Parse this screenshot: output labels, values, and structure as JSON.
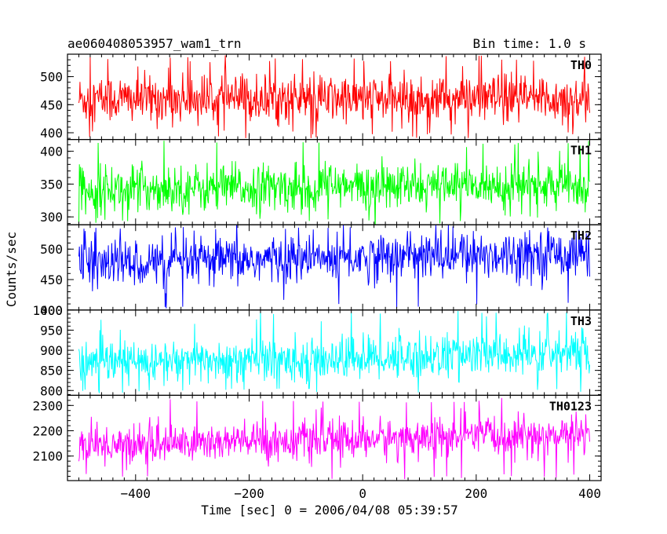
{
  "chart_data": {
    "type": "line",
    "title_left": "ae060408053957_wam1_trn",
    "title_right": "Bin time: 1.0 s",
    "xlabel": "Time [sec] 0 = 2006/04/08 05:39:57",
    "ylabel": "Counts/sec",
    "xlim": [
      -520,
      420
    ],
    "xticks": [
      -400,
      -200,
      0,
      200,
      400
    ],
    "xtick_labels": [
      "−400",
      "−200",
      "0",
      "200",
      "400"
    ],
    "bin_time_s": 1.0,
    "data_x_range": [
      -500,
      400
    ],
    "panels": [
      {
        "name": "TH0",
        "color": "#ff0000",
        "ylim": [
          388,
          540
        ],
        "yticks": [
          400,
          450,
          500
        ],
        "mean": 460,
        "noise_sd": 22,
        "trend": 0,
        "spike_max": 538,
        "spike_min": 390
      },
      {
        "name": "TH1",
        "color": "#00ff00",
        "ylim": [
          288,
          418
        ],
        "yticks": [
          300,
          350,
          400
        ],
        "mean": 345,
        "noise_sd": 18,
        "trend": 5,
        "spike_max": 418,
        "spike_min": 290
      },
      {
        "name": "TH2",
        "color": "#0000ff",
        "ylim": [
          400,
          540
        ],
        "yticks": [
          400,
          450,
          500
        ],
        "mean": 485,
        "noise_sd": 20,
        "trend": 20,
        "spike_max": 538,
        "spike_min": 402
      },
      {
        "name": "TH3",
        "color": "#00ffff",
        "ylim": [
          788,
          1000
        ],
        "yticks": [
          800,
          850,
          900,
          950,
          1000
        ],
        "mean": 880,
        "noise_sd": 28,
        "trend": 25,
        "spike_max": 998,
        "spike_min": 792
      },
      {
        "name": "TH0123",
        "color": "#ff00ff",
        "ylim": [
          2003,
          2340
        ],
        "yticks": [
          2100,
          2200,
          2300
        ],
        "mean": 2165,
        "noise_sd": 40,
        "trend": 45,
        "spike_max": 2330,
        "spike_min": 2008
      }
    ]
  }
}
